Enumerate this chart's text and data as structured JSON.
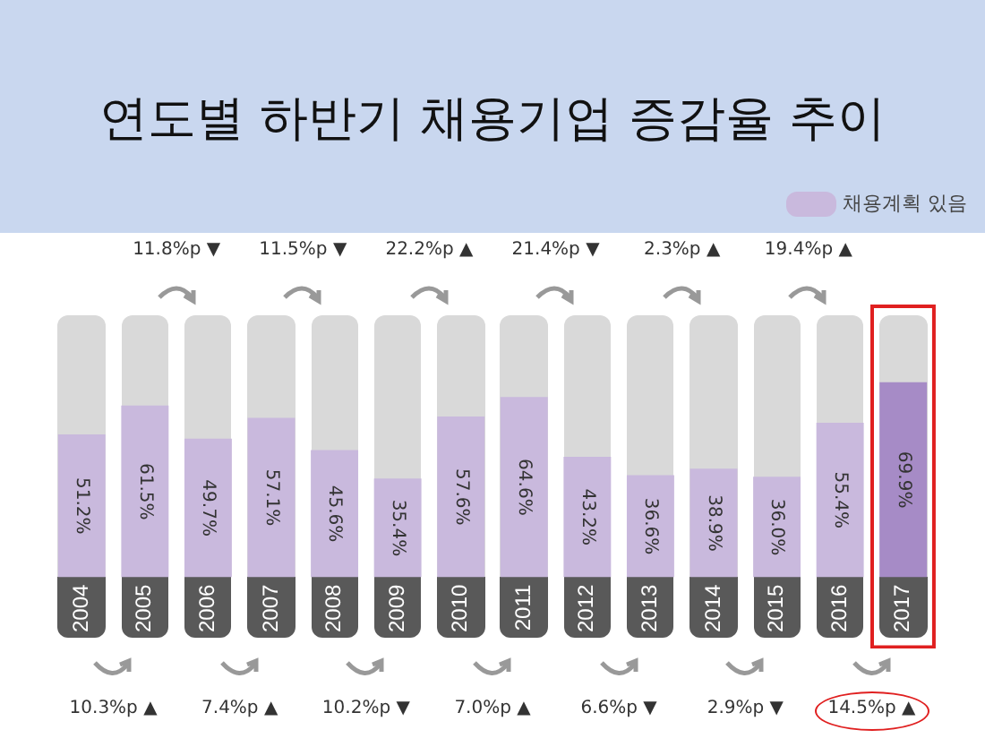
{
  "chart_data": {
    "type": "bar",
    "title": "연도별 하반기 채용기업 증감율 추이",
    "categories": [
      "2004",
      "2005",
      "2006",
      "2007",
      "2008",
      "2009",
      "2010",
      "2011",
      "2012",
      "2013",
      "2014",
      "2015",
      "2016",
      "2017"
    ],
    "series": [
      {
        "name": "채용계획 있음",
        "color": "#c9b9dd",
        "colors": [
          "#c9b9dd",
          "#c9b9dd",
          "#c9b9dd",
          "#c9b9dd",
          "#c9b9dd",
          "#c9b9dd",
          "#c9b9dd",
          "#c9b9dd",
          "#c9b9dd",
          "#c9b9dd",
          "#c9b9dd",
          "#c9b9dd",
          "#c9b9dd",
          "#a68bc6"
        ],
        "values": [
          51.2,
          61.5,
          49.7,
          57.1,
          45.6,
          35.4,
          57.6,
          64.6,
          43.2,
          36.6,
          38.9,
          36.0,
          55.4,
          69.9
        ],
        "value_labels": [
          "51.2%",
          "61.5%",
          "49.7%",
          "57.1%",
          "45.6%",
          "35.4%",
          "57.6%",
          "64.6%",
          "43.2%",
          "36.6%",
          "38.9%",
          "36.0%",
          "55.4%",
          "69.9%"
        ]
      }
    ],
    "legend": "top right",
    "grid": false,
    "annotations": [
      "10.3%p ▲",
      "11.8%p ▼",
      "7.4%p ▲",
      "11.5%p ▼",
      "10.2%p ▼",
      "22.2%p ▲",
      "7.0%p ▲",
      "21.4%p ▼",
      "6.6%p ▼",
      "2.3%p ▲",
      "2.9%p ▼",
      "19.4%p ▲",
      "14.5%p ▲"
    ]
  }
}
